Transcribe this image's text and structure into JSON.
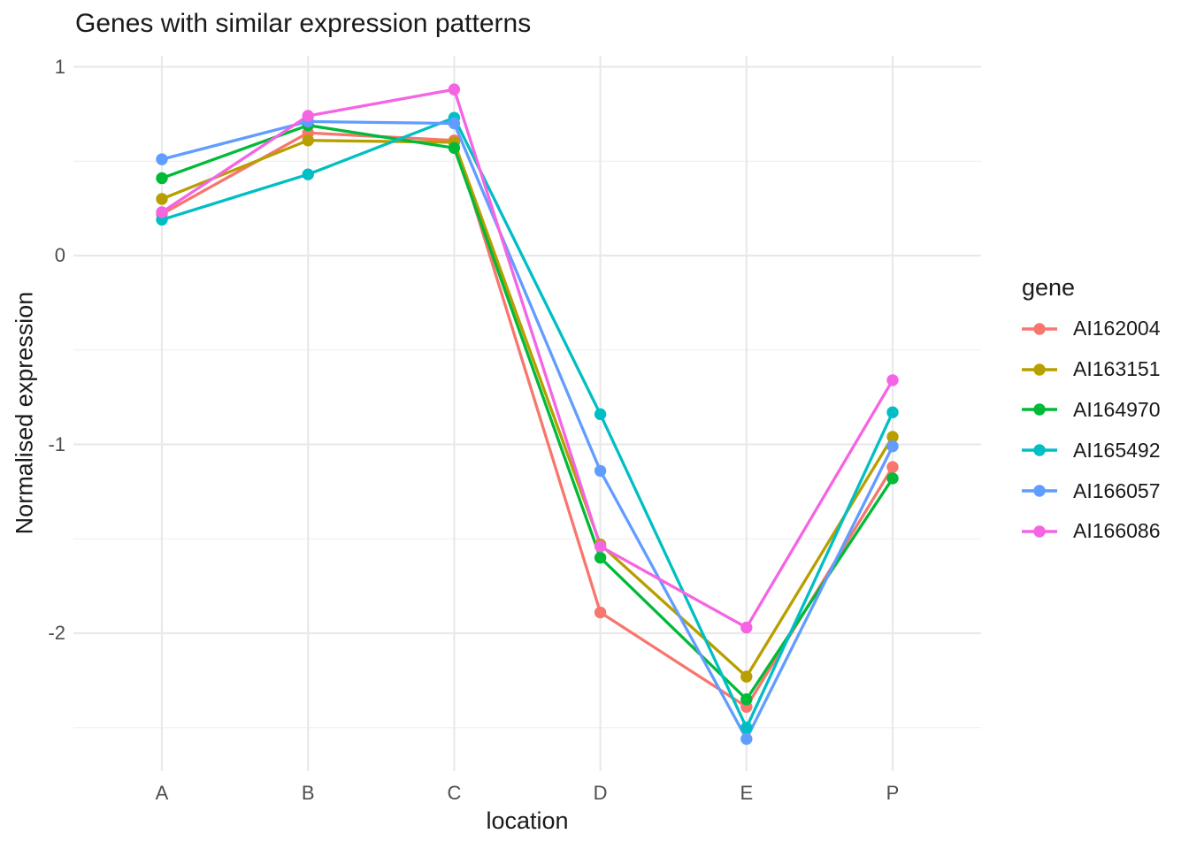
{
  "chart_data": {
    "type": "line",
    "title": "Genes with similar expression patterns",
    "xlabel": "location",
    "ylabel": "Normalised expression",
    "legend_title": "gene",
    "legend_position": "right",
    "grid": true,
    "categories": [
      "A",
      "B",
      "C",
      "D",
      "E",
      "P"
    ],
    "y_major_ticks": [
      1,
      0,
      -1,
      -2
    ],
    "y_minor_ticks": [
      0.5,
      -0.5,
      -1.5,
      -2.5
    ],
    "ylim": [
      -2.77,
      1.06
    ],
    "series": [
      {
        "name": "AI162004",
        "color": "#F8766D",
        "values": [
          0.22,
          0.65,
          0.61,
          -1.89,
          -2.39,
          -1.12
        ]
      },
      {
        "name": "AI163151",
        "color": "#B79F00",
        "values": [
          0.3,
          0.61,
          0.6,
          -1.53,
          -2.23,
          -0.96
        ]
      },
      {
        "name": "AI164970",
        "color": "#00BA38",
        "values": [
          0.41,
          0.69,
          0.57,
          -1.6,
          -2.35,
          -1.18
        ]
      },
      {
        "name": "AI165492",
        "color": "#00BFC4",
        "values": [
          0.19,
          0.43,
          0.73,
          -0.84,
          -2.5,
          -0.83
        ]
      },
      {
        "name": "AI166057",
        "color": "#619CFF",
        "values": [
          0.51,
          0.71,
          0.7,
          -1.14,
          -2.56,
          -1.01
        ]
      },
      {
        "name": "AI166086",
        "color": "#F564E3",
        "values": [
          0.23,
          0.74,
          0.88,
          -1.54,
          -1.97,
          -0.66
        ]
      }
    ]
  },
  "style": {
    "grid_major_color": "#E9E9E9",
    "grid_minor_color": "#F1F1F1",
    "tick_label_color": "#4d4d4d",
    "text_color": "#1a1a1a",
    "background": "#ffffff"
  }
}
